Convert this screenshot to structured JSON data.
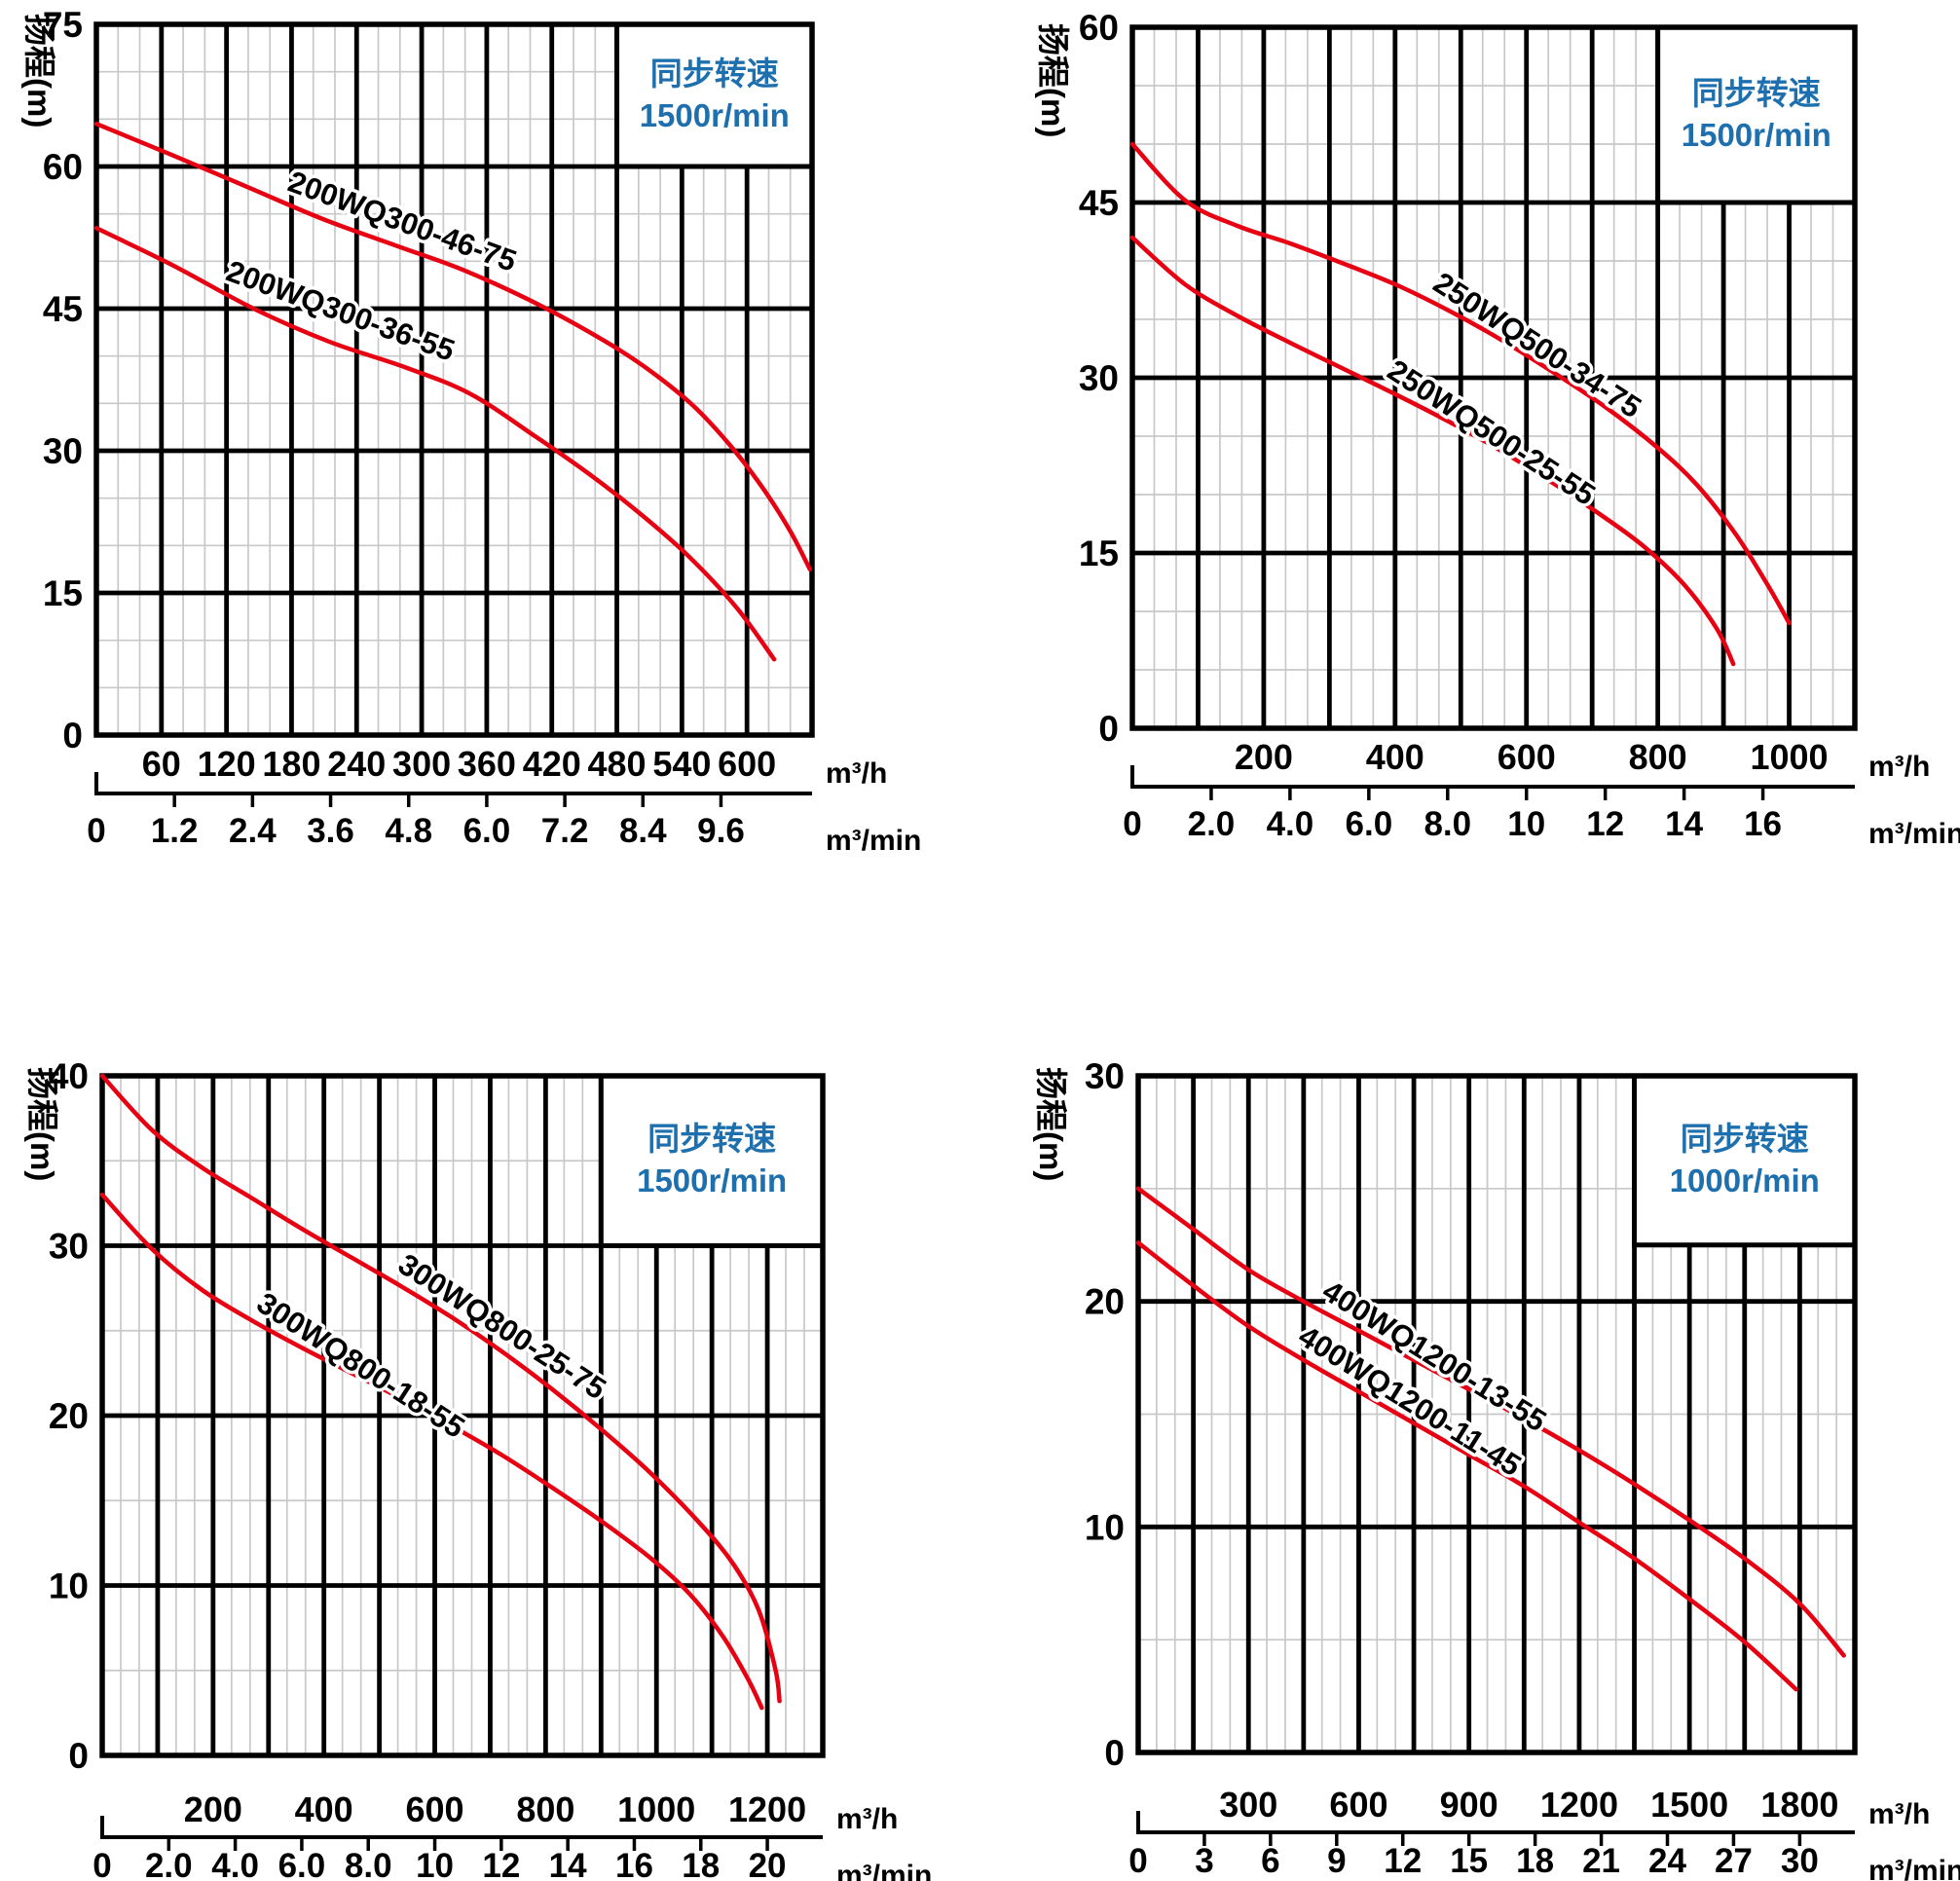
{
  "page": {
    "background": "#ffffff"
  },
  "colors": {
    "curve": "#e60012",
    "speed_text": "#1e6fae",
    "grid_major": "#000000",
    "grid_minor": "#c8c8c8",
    "text": "#000000"
  },
  "chart_data": [
    {
      "type": "line",
      "position": "top-left",
      "y_axis_label": "扬程(m)",
      "speed_note": {
        "line1": "同步转速",
        "line2": "1500r/min"
      },
      "x_unit_primary": "m³/h",
      "x_unit_secondary": "m³/min",
      "xlim": [
        0,
        660
      ],
      "x_major": 60,
      "ylim": [
        0,
        75
      ],
      "y_major": 15,
      "y_minor": 5,
      "y_ticks": [
        0,
        15,
        30,
        45,
        60,
        75
      ],
      "x_ticks": [
        60,
        120,
        180,
        240,
        300,
        360,
        420,
        480,
        540,
        600
      ],
      "x2": {
        "step": 72,
        "labels": [
          "0",
          "1.2",
          "2.4",
          "3.6",
          "4.8",
          "6.0",
          "7.2",
          "8.4",
          "9.6"
        ]
      },
      "note_box": [
        480,
        60,
        660,
        75
      ],
      "grid": "on",
      "series": [
        {
          "name": "200WQ300-46-75",
          "label_x": 175,
          "label_angle": 20,
          "points": [
            [
              0,
              64.5
            ],
            [
              70,
              61.2
            ],
            [
              140,
              57.8
            ],
            [
              210,
              54.4
            ],
            [
              280,
              51.5
            ],
            [
              340,
              49
            ],
            [
              410,
              45.3
            ],
            [
              470,
              41.5
            ],
            [
              510,
              38.5
            ],
            [
              550,
              34.8
            ],
            [
              585,
              30.5
            ],
            [
              615,
              26
            ],
            [
              640,
              21.5
            ],
            [
              658,
              17.5
            ]
          ]
        },
        {
          "name": "200WQ300-36-55",
          "label_x": 118,
          "label_angle": 20,
          "points": [
            [
              0,
              53.5
            ],
            [
              70,
              49.6
            ],
            [
              145,
              45
            ],
            [
              215,
              41.5
            ],
            [
              285,
              38.8
            ],
            [
              345,
              36
            ],
            [
              405,
              31.5
            ],
            [
              455,
              27.5
            ],
            [
              500,
              23.5
            ],
            [
              545,
              19
            ],
            [
              590,
              13.5
            ],
            [
              625,
              8
            ]
          ]
        }
      ]
    },
    {
      "type": "line",
      "position": "top-right",
      "y_axis_label": "扬程(m)",
      "speed_note": {
        "line1": "同步转速",
        "line2": "1500r/min"
      },
      "x_unit_primary": "m³/h",
      "x_unit_secondary": "m³/min",
      "xlim": [
        0,
        1100
      ],
      "x_major": 100,
      "ylim": [
        0,
        60
      ],
      "y_major": 15,
      "y_minor": 5,
      "y_ticks": [
        0,
        15,
        30,
        45,
        60
      ],
      "x_ticks": [
        200,
        400,
        600,
        800,
        1000
      ],
      "x2": {
        "step": 120,
        "labels": [
          "0",
          "2.0",
          "4.0",
          "6.0",
          "8.0",
          "10",
          "12",
          "14",
          "16"
        ]
      },
      "note_box": [
        800,
        45,
        1100,
        60
      ],
      "grid": "on",
      "series": [
        {
          "name": "250WQ500-34-75",
          "label_x": 455,
          "label_angle": 33,
          "points": [
            [
              0,
              50
            ],
            [
              80,
              45.2
            ],
            [
              160,
              43
            ],
            [
              240,
              41.5
            ],
            [
              320,
              39.8
            ],
            [
              400,
              38
            ],
            [
              480,
              35.8
            ],
            [
              560,
              33.3
            ],
            [
              640,
              30.5
            ],
            [
              720,
              27.5
            ],
            [
              800,
              24
            ],
            [
              860,
              20.8
            ],
            [
              920,
              16.5
            ],
            [
              970,
              12
            ],
            [
              1000,
              9
            ]
          ]
        },
        {
          "name": "250WQ500-25-55",
          "label_x": 385,
          "label_angle": 33,
          "points": [
            [
              0,
              42
            ],
            [
              80,
              38
            ],
            [
              160,
              35.3
            ],
            [
              240,
              33
            ],
            [
              320,
              30.8
            ],
            [
              400,
              28.6
            ],
            [
              480,
              26.3
            ],
            [
              560,
              23.8
            ],
            [
              640,
              21
            ],
            [
              720,
              18
            ],
            [
              780,
              15.5
            ],
            [
              840,
              12.3
            ],
            [
              890,
              8.5
            ],
            [
              915,
              5.5
            ]
          ]
        }
      ]
    },
    {
      "type": "line",
      "position": "bottom-left",
      "y_axis_label": "扬程(m)",
      "speed_note": {
        "line1": "同步转速",
        "line2": "1500r/min"
      },
      "x_unit_primary": "m³/h",
      "x_unit_secondary": "m³/min",
      "xlim": [
        0,
        1300
      ],
      "x_major": 100,
      "ylim": [
        0,
        40
      ],
      "y_major": 10,
      "y_minor": 5,
      "y_ticks": [
        0,
        10,
        20,
        30,
        40
      ],
      "x_ticks": [
        200,
        400,
        600,
        800,
        1000,
        1200
      ],
      "x2": {
        "step": 120,
        "labels": [
          "0",
          "2.0",
          "4.0",
          "6.0",
          "8.0",
          "10",
          "12",
          "14",
          "16",
          "18",
          "20"
        ]
      },
      "note_box": [
        900,
        30,
        1300,
        40
      ],
      "grid": "on",
      "series": [
        {
          "name": "300WQ800-25-75",
          "label_x": 530,
          "label_angle": 33,
          "points": [
            [
              0,
              40
            ],
            [
              90,
              36.8
            ],
            [
              180,
              34.6
            ],
            [
              270,
              32.8
            ],
            [
              360,
              31
            ],
            [
              450,
              29.3
            ],
            [
              540,
              27.6
            ],
            [
              630,
              25.8
            ],
            [
              720,
              23.8
            ],
            [
              810,
              21.6
            ],
            [
              900,
              19.2
            ],
            [
              990,
              16.6
            ],
            [
              1080,
              13.6
            ],
            [
              1140,
              11.2
            ],
            [
              1185,
              8.5
            ],
            [
              1215,
              5
            ],
            [
              1222,
              3.2
            ]
          ]
        },
        {
          "name": "300WQ800-18-55",
          "label_x": 275,
          "label_angle": 33,
          "points": [
            [
              0,
              33
            ],
            [
              90,
              29.8
            ],
            [
              180,
              27.4
            ],
            [
              270,
              25.6
            ],
            [
              360,
              24
            ],
            [
              450,
              22.5
            ],
            [
              540,
              21
            ],
            [
              630,
              19.4
            ],
            [
              720,
              17.7
            ],
            [
              810,
              15.8
            ],
            [
              900,
              13.8
            ],
            [
              990,
              11.6
            ],
            [
              1060,
              9.5
            ],
            [
              1120,
              7
            ],
            [
              1165,
              4.5
            ],
            [
              1190,
              2.8
            ]
          ]
        }
      ]
    },
    {
      "type": "line",
      "position": "bottom-right",
      "y_axis_label": "扬程(m)",
      "speed_note": {
        "line1": "同步转速",
        "line2": "1000r/min"
      },
      "x_unit_primary": "m³/h",
      "x_unit_secondary": "m³/min",
      "xlim": [
        0,
        1950
      ],
      "x_major": 150,
      "ylim": [
        0,
        30
      ],
      "y_major": 10,
      "y_minor": 5,
      "y_ticks": [
        0,
        10,
        20,
        30
      ],
      "x_ticks": [
        300,
        600,
        900,
        1200,
        1500,
        1800
      ],
      "x2": {
        "step": 180,
        "labels": [
          "0",
          "3",
          "6",
          "9",
          "12",
          "15",
          "18",
          "21",
          "24",
          "27",
          "30"
        ]
      },
      "note_box": [
        1350,
        22.5,
        1950,
        30
      ],
      "grid": "on",
      "series": [
        {
          "name": "400WQ1200-13-55",
          "label_x": 495,
          "label_angle": 32,
          "points": [
            [
              0,
              25
            ],
            [
              150,
              23.2
            ],
            [
              300,
              21.4
            ],
            [
              450,
              20
            ],
            [
              600,
              18.7
            ],
            [
              750,
              17.4
            ],
            [
              900,
              16.1
            ],
            [
              1050,
              14.8
            ],
            [
              1200,
              13.4
            ],
            [
              1350,
              11.9
            ],
            [
              1500,
              10.3
            ],
            [
              1650,
              8.6
            ],
            [
              1800,
              6.6
            ],
            [
              1920,
              4.3
            ]
          ]
        },
        {
          "name": "400WQ1200-11-45",
          "label_x": 430,
          "label_angle": 32,
          "points": [
            [
              0,
              22.6
            ],
            [
              150,
              20.7
            ],
            [
              300,
              18.9
            ],
            [
              450,
              17.4
            ],
            [
              600,
              16
            ],
            [
              750,
              14.6
            ],
            [
              900,
              13.2
            ],
            [
              1050,
              11.8
            ],
            [
              1200,
              10.2
            ],
            [
              1350,
              8.6
            ],
            [
              1500,
              6.8
            ],
            [
              1650,
              4.9
            ],
            [
              1790,
              2.8
            ]
          ]
        }
      ]
    }
  ]
}
